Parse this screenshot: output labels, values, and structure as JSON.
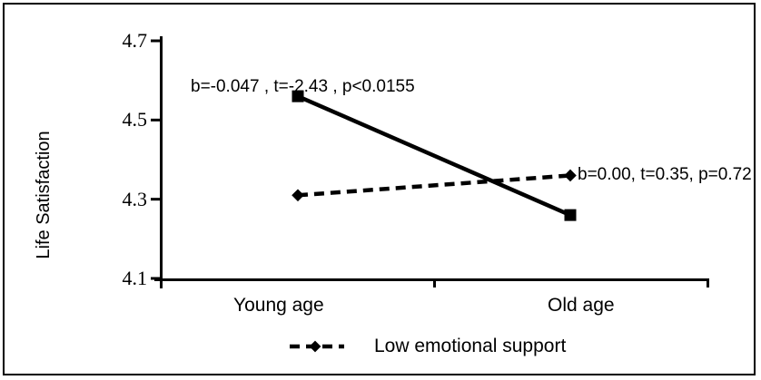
{
  "chart_data": {
    "type": "line",
    "categories": [
      "Young age",
      "Old age"
    ],
    "series": [
      {
        "style": "solid",
        "marker": "square",
        "values": [
          4.56,
          4.26
        ],
        "annotation": "b=-0.047 , t=-2.43 , p<0.0155"
      },
      {
        "style": "dashed",
        "marker": "diamond",
        "values": [
          4.31,
          4.36
        ],
        "annotation": "b=0.00, t=0.35, p=0.72",
        "legend_label": "Low emotional support"
      }
    ],
    "title": "",
    "xlabel": "",
    "ylabel": "Life Satisfaction",
    "ylim": [
      4.1,
      4.7
    ],
    "yticks": [
      "4.7",
      "4.5",
      "4.3",
      "4.1"
    ],
    "grid": false,
    "legend": {
      "position": "bottom-center",
      "entries": [
        {
          "label": "Low emotional support",
          "style": "dashed",
          "marker": "diamond"
        }
      ]
    },
    "colors": {
      "foreground": "#000000",
      "background": "#ffffff"
    }
  }
}
